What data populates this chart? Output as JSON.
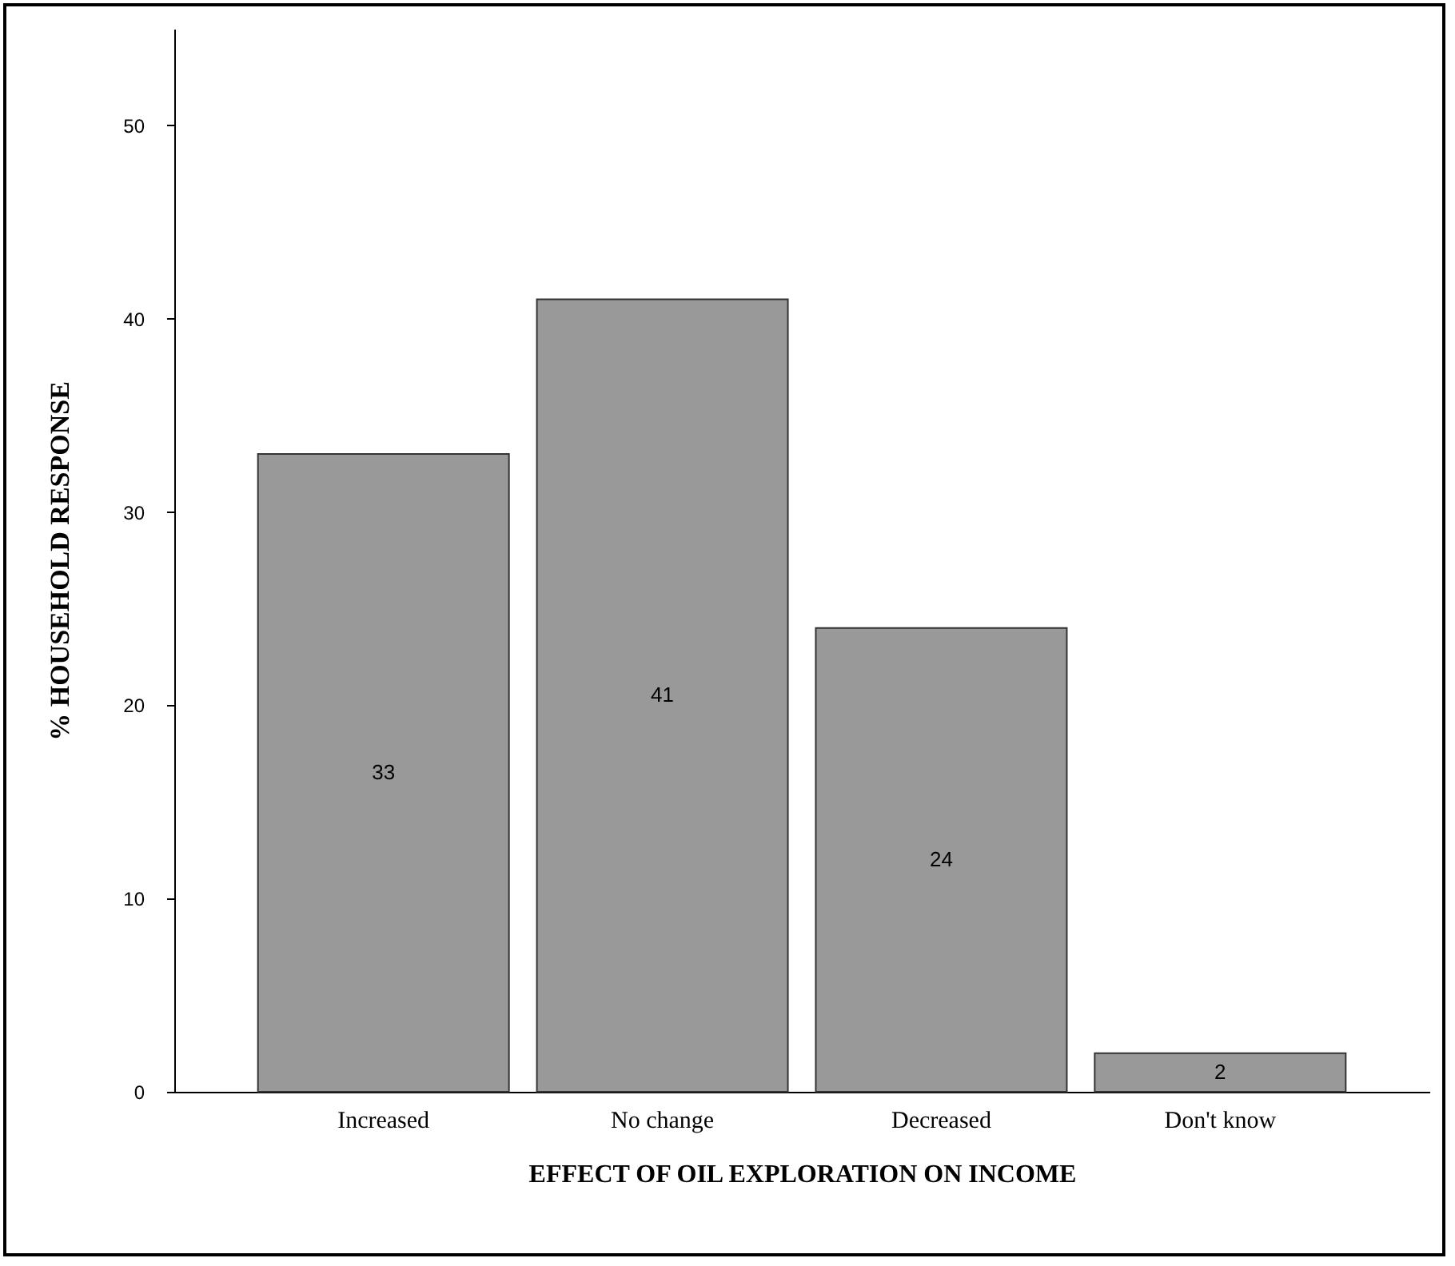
{
  "chart_data": {
    "type": "bar",
    "xlabel": "EFFECT OF OIL EXPLORATION ON INCOME",
    "ylabel": "% HOUSEHOLD RESPONSE",
    "categories": [
      "Increased",
      "No change",
      "Decreased",
      "Don't know"
    ],
    "values": [
      33,
      41,
      24,
      2
    ],
    "color": "#999999",
    "ylim": [
      0,
      55
    ],
    "yticks": [
      0,
      10,
      20,
      30,
      40,
      50
    ],
    "data_labels": true,
    "grid": false
  }
}
